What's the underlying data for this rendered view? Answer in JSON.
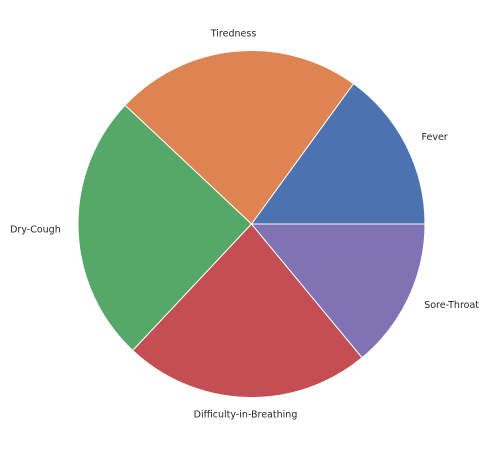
{
  "chart_data": {
    "type": "pie",
    "categories": [
      "Fever",
      "Tiredness",
      "Dry-Cough",
      "Difficulty-in-Breathing",
      "Sore-Throat"
    ],
    "values": [
      15,
      23,
      25,
      23,
      14
    ],
    "colors": [
      "#4c72b0",
      "#dd8452",
      "#55a868",
      "#c44e52",
      "#8172b3"
    ],
    "start_angle": 0,
    "direction": "counterclockwise",
    "legend": false
  }
}
